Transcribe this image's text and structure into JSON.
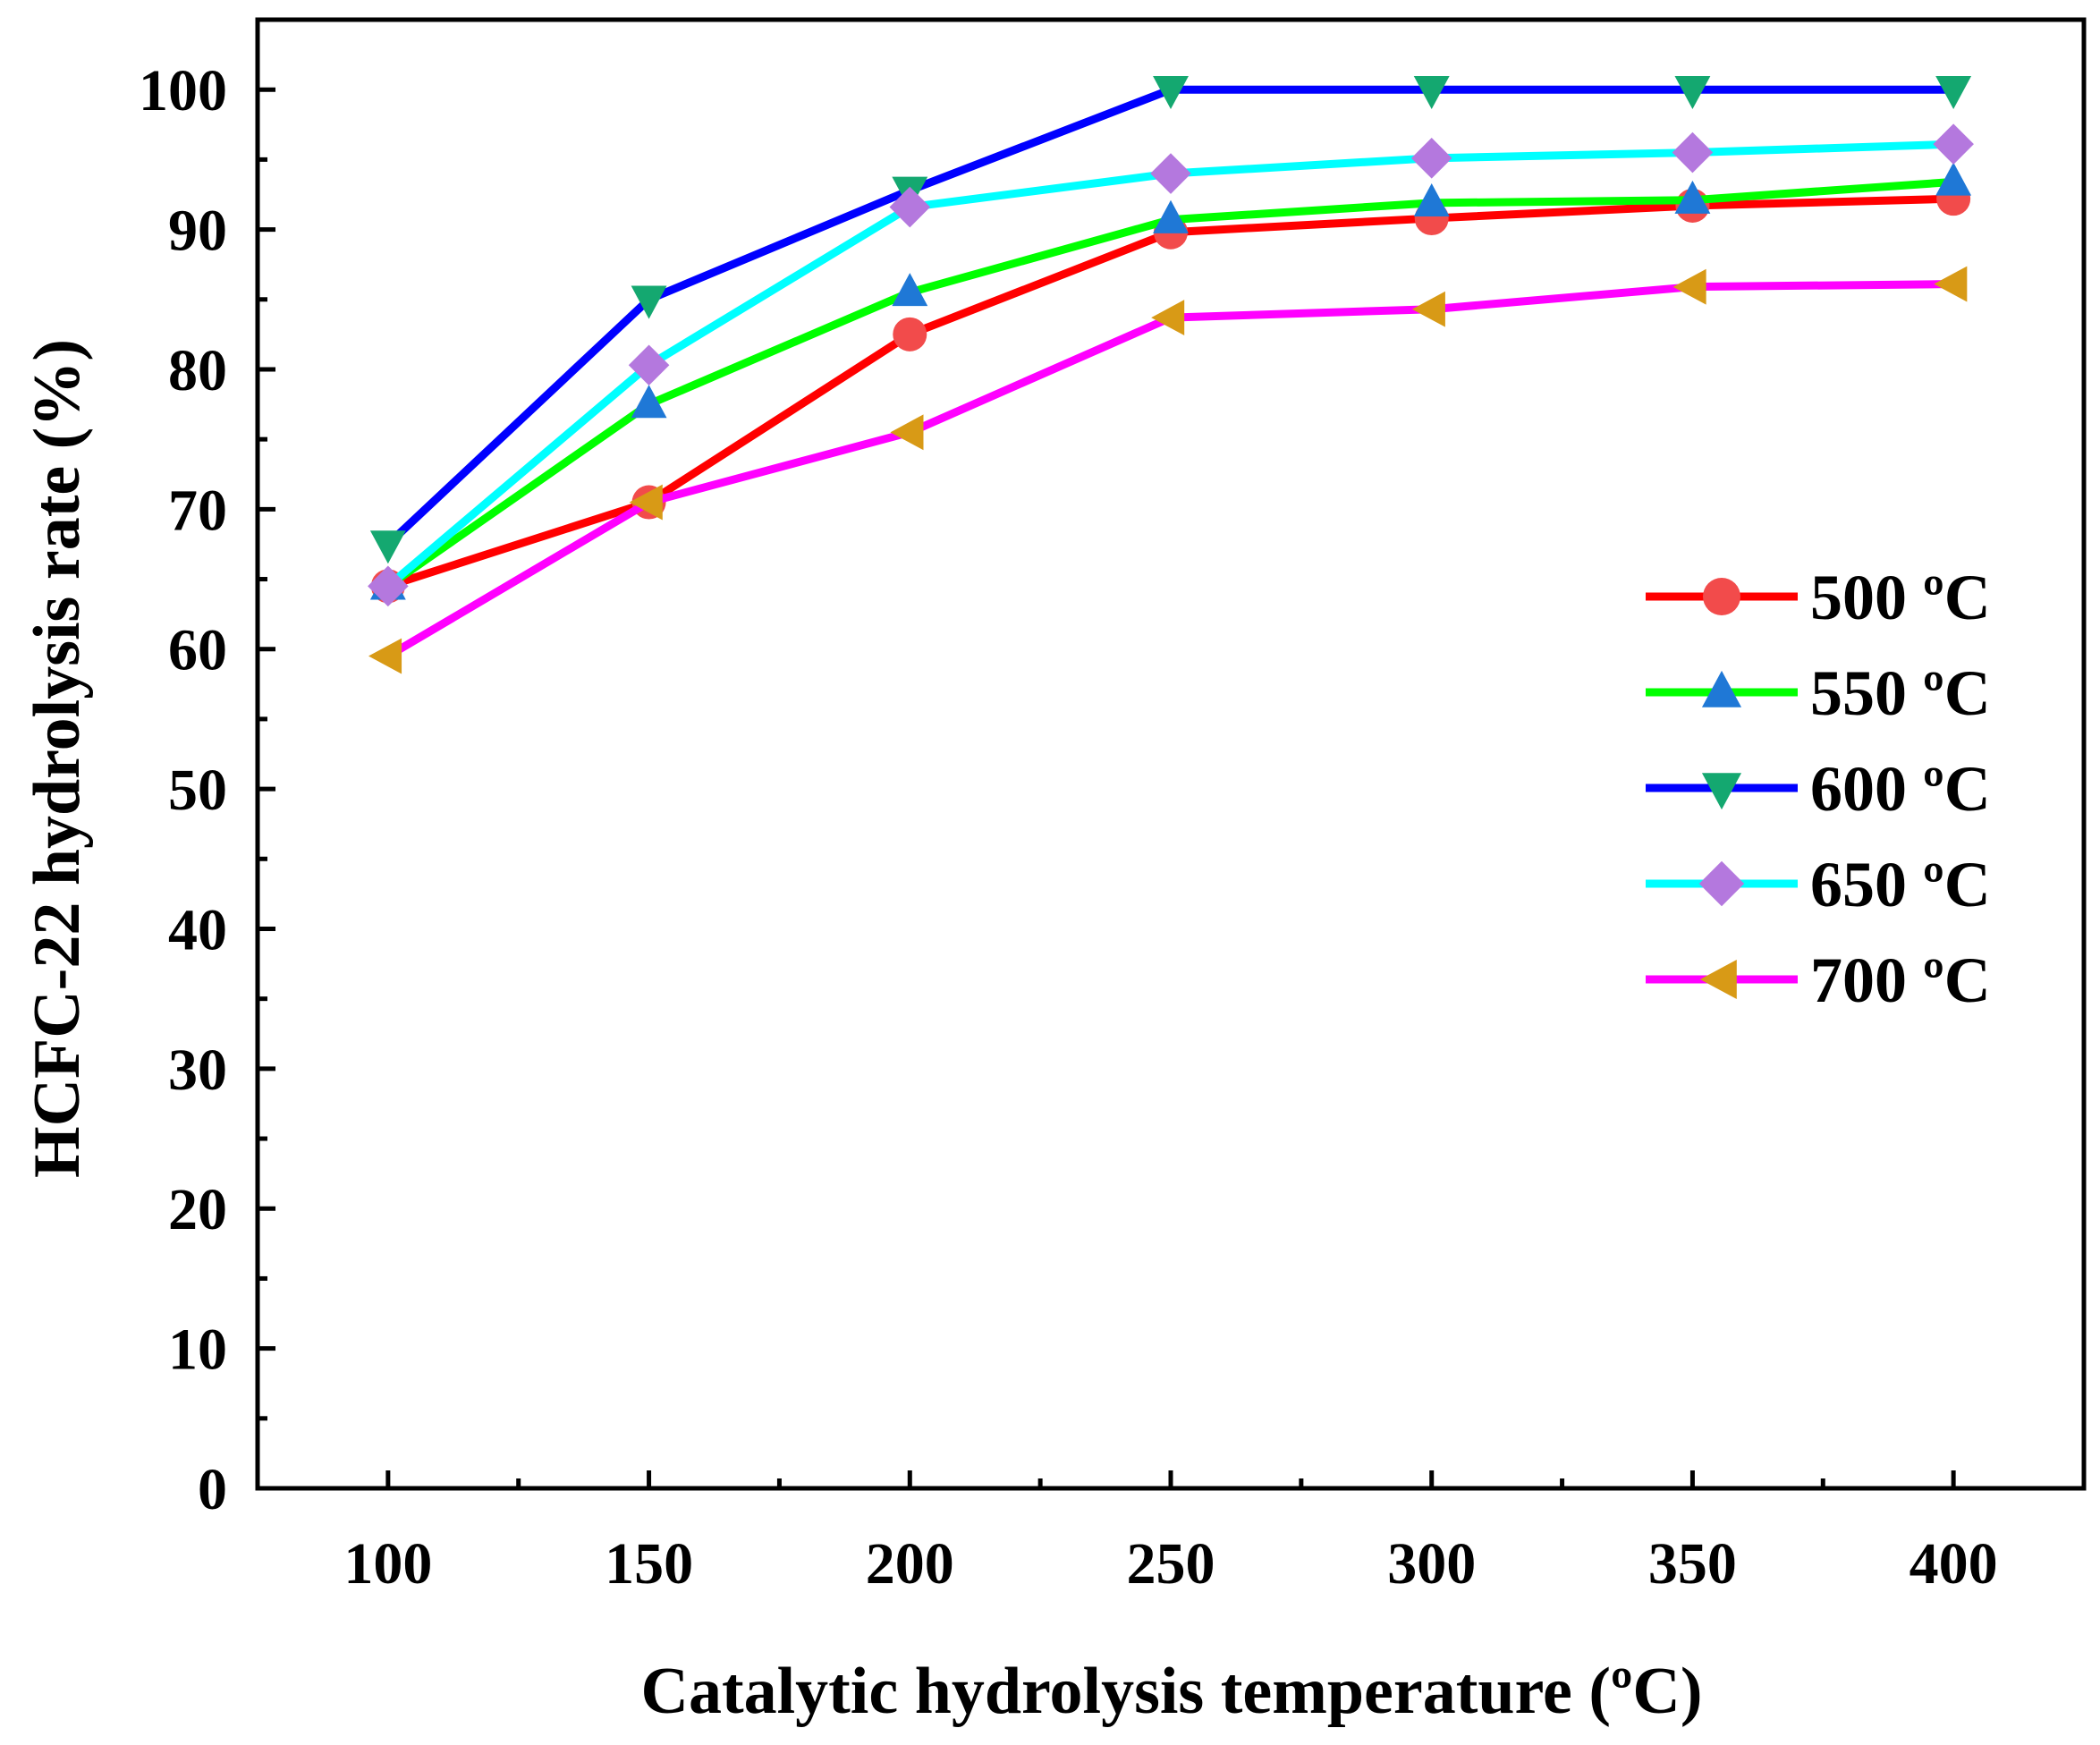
{
  "chart_data": {
    "type": "line",
    "xlabel": "Catalytic hydrolysis temperature (ºC)",
    "ylabel": "HCFC-22 hydrolysis rate (%)",
    "x": [
      100,
      150,
      200,
      250,
      300,
      350,
      400
    ],
    "xlim": [
      75,
      425
    ],
    "ylim": [
      0,
      105
    ],
    "x_ticks": [
      100,
      150,
      200,
      250,
      300,
      350,
      400
    ],
    "y_ticks": [
      0,
      10,
      20,
      30,
      40,
      50,
      60,
      70,
      80,
      90,
      100
    ],
    "grid": false,
    "legend_position": "right",
    "series": [
      {
        "name": "500 ºC",
        "values": [
          64.5,
          70.5,
          82.5,
          89.8,
          90.8,
          91.7,
          92.2
        ],
        "line_color": "#ff0000",
        "marker": "circle",
        "marker_color": "#f24b4b"
      },
      {
        "name": "550 ºC",
        "values": [
          64.5,
          77.5,
          85.5,
          90.7,
          91.9,
          92.1,
          93.4
        ],
        "line_color": "#00ff00",
        "marker": "triangle-up",
        "marker_color": "#1f78d6"
      },
      {
        "name": "600 ºC",
        "values": [
          67.5,
          85.0,
          92.8,
          100,
          100,
          100,
          100
        ],
        "line_color": "#0000ff",
        "marker": "triangle-down",
        "marker_color": "#14a870"
      },
      {
        "name": "650 ºC",
        "values": [
          64.5,
          80.3,
          91.6,
          94.0,
          95.1,
          95.5,
          96.1
        ],
        "line_color": "#00ffff",
        "marker": "diamond",
        "marker_color": "#b478de"
      },
      {
        "name": "700 ºC",
        "values": [
          59.5,
          70.5,
          75.5,
          83.7,
          84.3,
          85.9,
          86.1
        ],
        "line_color": "#ff00ff",
        "marker": "triangle-left",
        "marker_color": "#d89a16"
      }
    ]
  }
}
